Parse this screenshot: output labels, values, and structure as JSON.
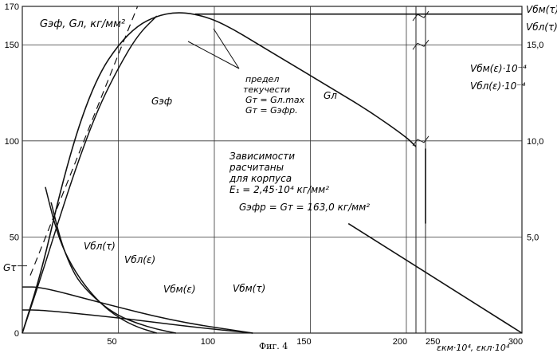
{
  "chart_data": {
    "type": "line",
    "caption": "Фиг. 4",
    "ylabel_left": "Gэф, Gл, кг/мм²",
    "ylabel_right_top": "Vбм(τ)",
    "ylabel_right_2": "Vбл(τ)",
    "ylabel_right_3": "Vбм(ε)·10⁻⁴",
    "ylabel_right_4": "Vбл(ε)·10⁻⁴",
    "xlabel": "εкм·10⁴, εкл·10⁴",
    "left_yticks": [
      "0",
      "50",
      "100",
      "150",
      "170"
    ],
    "left_ylim": [
      0,
      170
    ],
    "right_yticks": [
      "5,0",
      "10,0",
      "15,0"
    ],
    "xticks": [
      "50",
      "100",
      "150",
      "200",
      "250",
      "300"
    ],
    "xlim": [
      0,
      300
    ],
    "axis_break_between": [
      205,
      250
    ],
    "mark_label": "Gτ",
    "mark_value": 35,
    "annotations": {
      "yield_l1": "предел",
      "yield_l2": "текучести",
      "yield_l3": "Gт = Gл.max",
      "yield_l4": "Gт = Gэфр.",
      "calc_l1": "Зависимости",
      "calc_l2": "расчитаны",
      "calc_l3": "для корпуса",
      "calc_l4": "E₁ = 2,45·10⁴ кг/мм²",
      "calc_l5": "Gэфр = Gт = 163,0 кг/мм²"
    },
    "series": [
      {
        "name": "Gэф",
        "x": [
          0,
          10,
          20,
          30,
          40,
          50,
          60,
          70
        ],
        "y": [
          0,
          30,
          62,
          92,
          118,
          138,
          155,
          165
        ]
      },
      {
        "name": "Gл",
        "x": [
          0,
          10,
          20,
          30,
          40,
          50,
          60,
          70,
          80,
          90,
          100,
          110,
          120,
          140,
          160,
          180,
          200,
          205,
          210,
          250,
          300
        ],
        "y": [
          0,
          32,
          75,
          110,
          135,
          150,
          160,
          165,
          167,
          166,
          163,
          158,
          152,
          140,
          128,
          116,
          102,
          97,
          165,
          165,
          165
        ]
      },
      {
        "name": "Gл (corpus, after break)",
        "x": [
          210,
          300
        ],
        "y": [
          57,
          0
        ]
      },
      {
        "name": "Vбл(τ)",
        "x": [
          15,
          20,
          25,
          30,
          40,
          50,
          60,
          70,
          80
        ],
        "y": [
          68,
          48,
          35,
          26,
          16,
          9,
          5,
          2,
          0
        ]
      },
      {
        "name": "Vбл(ε)",
        "x": [
          12,
          17,
          22,
          30,
          40,
          50,
          60,
          70
        ],
        "y": [
          76,
          56,
          42,
          28,
          16,
          8,
          3,
          0
        ]
      },
      {
        "name": "Vбм(ε)",
        "x": [
          0,
          10,
          40,
          80,
          120
        ],
        "y": [
          24,
          24,
          16,
          6,
          0
        ]
      },
      {
        "name": "Vбм(τ)",
        "x": [
          0,
          10,
          50,
          90,
          120
        ],
        "y": [
          12,
          12,
          8,
          3,
          0
        ]
      }
    ],
    "dashed_tangent": {
      "x": [
        0,
        60
      ],
      "y": [
        0,
        170
      ]
    }
  }
}
